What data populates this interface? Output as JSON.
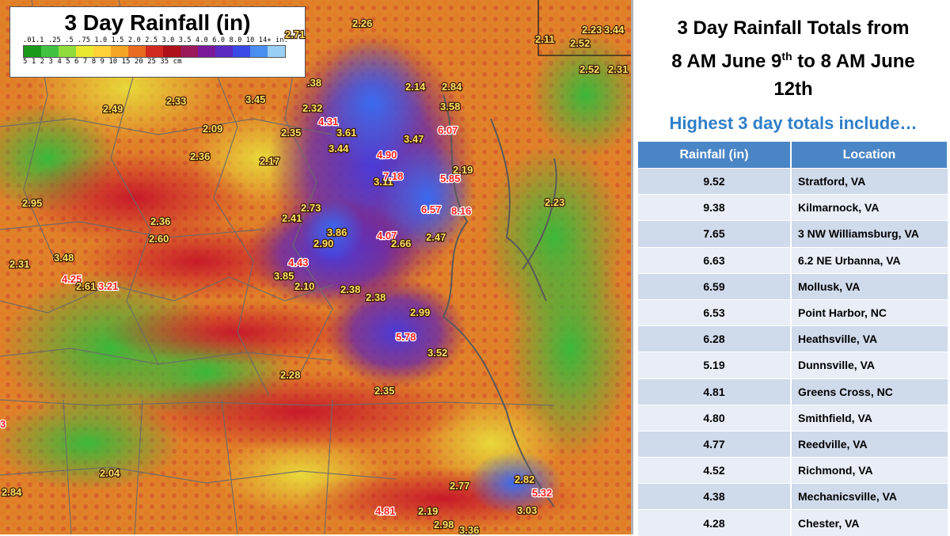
{
  "map": {
    "title": "3 Day Rainfall (in)",
    "legend_inches": ".01.1 .25 .5 .75 1.0 1.5 2.0 2.5 3.0 3.5 4.0 6.0 8.0 10 14+ in.",
    "legend_cm": "5   1    2    3   4   5   6   7   8  9  10  15  20  25  35   cm",
    "legend_colors": [
      "#1a9a1a",
      "#42c242",
      "#8fdc3c",
      "#e8e830",
      "#ffd23a",
      "#f5a623",
      "#e86b1f",
      "#d1281f",
      "#b0101a",
      "#9a1a5a",
      "#7a1a9a",
      "#5a2ac2",
      "#3a4ae6",
      "#4a8ef0",
      "#9ad0f5"
    ],
    "labels": [
      {
        "text": "2.26",
        "color": "yellow"
      },
      {
        "text": "2.71",
        "color": "yellow"
      },
      {
        "text": "2.11",
        "color": "yellow"
      },
      {
        "text": "2.52",
        "color": "yellow"
      },
      {
        "text": "2.23",
        "color": "yellow"
      },
      {
        "text": "3.44",
        "color": "yellow"
      },
      {
        "text": "2.52",
        "color": "yellow"
      },
      {
        "text": "2.31",
        "color": "yellow"
      },
      {
        "text": "2.49",
        "color": "yellow"
      },
      {
        "text": "2.33",
        "color": "yellow"
      },
      {
        "text": "3.45",
        "color": "yellow"
      },
      {
        "text": ".38",
        "color": "yellow"
      },
      {
        "text": "2.32",
        "color": "yellow"
      },
      {
        "text": "2.14",
        "color": "yellow"
      },
      {
        "text": "2.84",
        "color": "yellow"
      },
      {
        "text": "3.58",
        "color": "yellow"
      },
      {
        "text": "2.09",
        "color": "yellow"
      },
      {
        "text": "4.31",
        "color": "red"
      },
      {
        "text": "2.35",
        "color": "yellow"
      },
      {
        "text": "3.61",
        "color": "yellow"
      },
      {
        "text": "6.07",
        "color": "red"
      },
      {
        "text": "3.47",
        "color": "yellow"
      },
      {
        "text": "3.44",
        "color": "yellow"
      },
      {
        "text": "2.36",
        "color": "yellow"
      },
      {
        "text": "2.17",
        "color": "yellow"
      },
      {
        "text": "4.90",
        "color": "red"
      },
      {
        "text": "2.19",
        "color": "yellow"
      },
      {
        "text": "3.11",
        "color": "yellow"
      },
      {
        "text": "7.18",
        "color": "red"
      },
      {
        "text": "5.85",
        "color": "red"
      },
      {
        "text": "2.23",
        "color": "yellow"
      },
      {
        "text": "6.57",
        "color": "red"
      },
      {
        "text": "8.16",
        "color": "red"
      },
      {
        "text": "2.95",
        "color": "yellow"
      },
      {
        "text": "2.36",
        "color": "yellow"
      },
      {
        "text": "2.73",
        "color": "yellow"
      },
      {
        "text": "2.41",
        "color": "yellow"
      },
      {
        "text": "2.60",
        "color": "yellow"
      },
      {
        "text": "3.86",
        "color": "yellow"
      },
      {
        "text": "4.07",
        "color": "red"
      },
      {
        "text": "2.66",
        "color": "yellow"
      },
      {
        "text": "2.47",
        "color": "yellow"
      },
      {
        "text": "2.90",
        "color": "yellow"
      },
      {
        "text": "2.31",
        "color": "yellow"
      },
      {
        "text": "3.48",
        "color": "yellow"
      },
      {
        "text": "4.43",
        "color": "red"
      },
      {
        "text": "4.25",
        "color": "red"
      },
      {
        "text": "3.85",
        "color": "yellow"
      },
      {
        "text": "2.61",
        "color": "yellow"
      },
      {
        "text": "3.21",
        "color": "red"
      },
      {
        "text": "2.10",
        "color": "yellow"
      },
      {
        "text": "2.38",
        "color": "yellow"
      },
      {
        "text": "2.38",
        "color": "yellow"
      },
      {
        "text": "2.99",
        "color": "yellow"
      },
      {
        "text": "5.78",
        "color": "red"
      },
      {
        "text": "3.52",
        "color": "yellow"
      },
      {
        "text": "2.28",
        "color": "yellow"
      },
      {
        "text": "2.35",
        "color": "yellow"
      },
      {
        "text": "3",
        "color": "red"
      },
      {
        "text": "2.04",
        "color": "yellow"
      },
      {
        "text": "2.84",
        "color": "yellow"
      },
      {
        "text": "2.82",
        "color": "yellow"
      },
      {
        "text": "2.77",
        "color": "yellow"
      },
      {
        "text": "5.32",
        "color": "red"
      },
      {
        "text": "4.81",
        "color": "red"
      },
      {
        "text": "2.19",
        "color": "yellow"
      },
      {
        "text": "3.03",
        "color": "yellow"
      },
      {
        "text": "2.98",
        "color": "yellow"
      },
      {
        "text": "3.36",
        "color": "yellow"
      }
    ]
  },
  "header": {
    "line1": "3 Day Rainfall Totals from",
    "line2_a": "8 AM June 9",
    "line2_sup1": "th",
    "line2_b": " to 8 AM June",
    "line3": "12th",
    "subheading": "Highest 3 day totals include…"
  },
  "table": {
    "col_value": "Rainfall (in)",
    "col_location": "Location",
    "rows": [
      {
        "value": "9.52",
        "location": "Stratford, VA"
      },
      {
        "value": "9.38",
        "location": "Kilmarnock, VA"
      },
      {
        "value": "7.65",
        "location": "3 NW Williamsburg, VA"
      },
      {
        "value": "6.63",
        "location": "6.2 NE Urbanna, VA"
      },
      {
        "value": "6.59",
        "location": "Mollusk, VA"
      },
      {
        "value": "6.53",
        "location": "Point Harbor, NC"
      },
      {
        "value": "6.28",
        "location": "Heathsville, VA"
      },
      {
        "value": "5.19",
        "location": "Dunnsville, VA"
      },
      {
        "value": "4.81",
        "location": "Greens Cross, NC"
      },
      {
        "value": "4.80",
        "location": "Smithfield, VA"
      },
      {
        "value": "4.77",
        "location": "Reedville, VA"
      },
      {
        "value": "4.52",
        "location": "Richmond, VA"
      },
      {
        "value": "4.38",
        "location": "Mechanicsville, VA"
      },
      {
        "value": "4.28",
        "location": "Chester, VA"
      }
    ]
  }
}
